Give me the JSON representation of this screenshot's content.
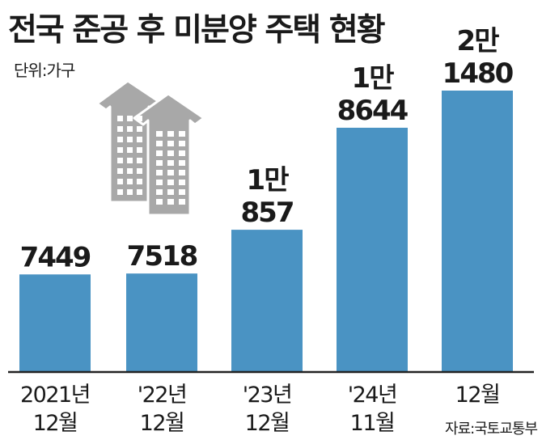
{
  "title": "전국 준공 후 미분양 주택 현황",
  "unit_label": "단위:가구",
  "source": "자료:국토교통부",
  "colors": {
    "bar": "#4a93c3",
    "axis": "#222222",
    "building": "#a8a8a8"
  },
  "decoration": "building-icon",
  "chart_data": {
    "type": "bar",
    "title": "전국 준공 후 미분양 주택 현황",
    "unit": "가구",
    "categories": [
      [
        "2021년",
        "12월"
      ],
      [
        "'22년",
        "12월"
      ],
      [
        "'23년",
        "12월"
      ],
      [
        "'24년",
        "11월"
      ],
      [
        "12월"
      ]
    ],
    "values": [
      7449,
      7518,
      10857,
      18644,
      21480
    ],
    "value_labels": [
      [
        "7449"
      ],
      [
        "7518"
      ],
      [
        "1만",
        "857"
      ],
      [
        "1만",
        "8644"
      ],
      [
        "2만",
        "1480"
      ]
    ],
    "grid": false,
    "legend": "none"
  }
}
